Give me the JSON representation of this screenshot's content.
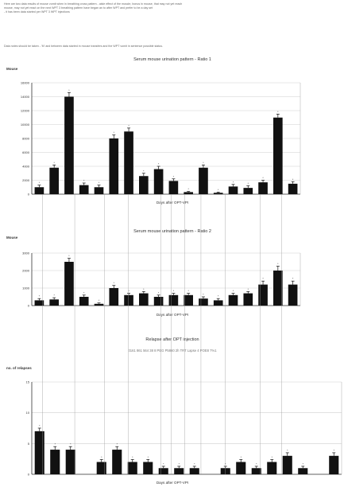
{
  "intro": {
    "lines": [
      "Here are two data results of mouse vomit when in breathing cross pattern - aisle effect of the muscle, bonus in mouse, that may not yet reach",
      "mouse, may not yet react on the next WPT 3 breathing pattern have began an to after WPT and prefer to be a day set",
      "- it has been data started per WPT 3 WPT injections"
    ],
    "note": "Data notes should be taken - 'M' and between data started in mouse transfers and the WPT vomit in sentence possible status."
  },
  "chart_data": [
    {
      "type": "bar",
      "title": "Serum mouse urination pattern - Ratio 1",
      "ylabel": "Mouse",
      "xlabel": "Days after OPT-VPI",
      "ylim": [
        0,
        16000
      ],
      "yticks": [
        0,
        2000,
        4000,
        6000,
        8000,
        10000,
        12000,
        14000,
        16000
      ],
      "grid": true,
      "values": [
        1000,
        3800,
        14000,
        1300,
        1000,
        8000,
        9000,
        2600,
        3600,
        1900,
        300,
        3800,
        200,
        1100,
        900,
        1700,
        11000,
        1500
      ],
      "errors": [
        300,
        400,
        600,
        300,
        300,
        500,
        500,
        400,
        400,
        300,
        100,
        400,
        100,
        300,
        300,
        300,
        500,
        300
      ]
    },
    {
      "type": "bar",
      "title": "Serum mouse urination pattern - Ratio 2",
      "ylabel": "Mouse",
      "xlabel": "Days after OPT-VPI",
      "ylim": [
        0,
        3000
      ],
      "yticks": [
        0,
        1000,
        2000,
        3000
      ],
      "grid": true,
      "values": [
        300,
        350,
        2500,
        500,
        100,
        1000,
        600,
        700,
        500,
        600,
        600,
        400,
        300,
        600,
        700,
        1200,
        2000,
        1200
      ],
      "errors": [
        100,
        100,
        200,
        100,
        50,
        150,
        100,
        100,
        100,
        100,
        100,
        100,
        100,
        100,
        100,
        200,
        250,
        200
      ]
    },
    {
      "type": "bar",
      "title": "Relapse after OPT injection",
      "annotation": "0161 861 564 38 8  PEG  P5860  2h  TRT  Lapse  4  POE8  7%1",
      "ylabel": "no. of relapses",
      "xlabel": "Days after OPT-VPI",
      "ylim": [
        0,
        15
      ],
      "yticks": [
        0,
        5,
        10,
        15
      ],
      "grid": true,
      "values": [
        7,
        4,
        4,
        0,
        2,
        4,
        2,
        2,
        1,
        1,
        1,
        0,
        1,
        2,
        1,
        2,
        3,
        1,
        0,
        3
      ],
      "errors": [
        0.5,
        0.5,
        0.5,
        0,
        0.4,
        0.5,
        0.4,
        0.4,
        0.3,
        0.3,
        0.3,
        0,
        0.3,
        0.4,
        0.3,
        0.4,
        0.5,
        0.3,
        0,
        0.5
      ]
    }
  ]
}
